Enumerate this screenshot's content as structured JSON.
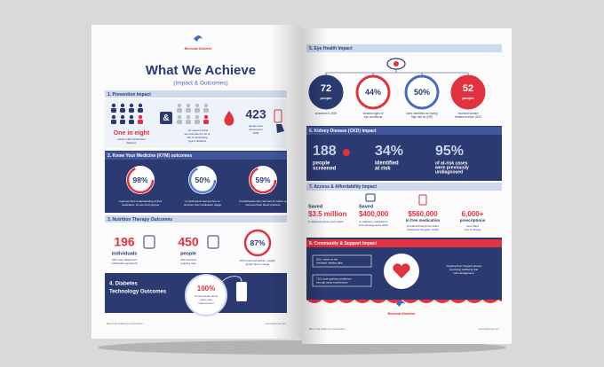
{
  "left_page": {
    "logo": "Bermuda Diabetes",
    "title": "What We Achieve",
    "subtitle": "(Impact & Outcomes)",
    "prevention": {
      "heading": "1. Prevention Impact",
      "stat": "One in eight",
      "stat_caption": [
        "adults in Bermuda have",
        "diabetes"
      ],
      "ampersand": "&",
      "risk_caption": [
        "...an equal number",
        "are estimated to be at",
        "risk of developing",
        "type 2 diabetes"
      ],
      "screened": "423",
      "screened_caption": [
        "people were",
        "screened in",
        "2025"
      ]
    },
    "kym": {
      "heading": "2. Know Your Medicine (KYM) outcomes",
      "items": [
        {
          "value": "98%",
          "caption": [
            "improved their understanding of their",
            "medication, its use and purpose"
          ]
        },
        {
          "value": "50%",
          "caption": [
            "of participants learned how to",
            "optimize their medication usage"
          ]
        },
        {
          "value": "59%",
          "caption": [
            "of participants who returned for follow up",
            "improved their blood pressure"
          ]
        }
      ]
    },
    "nutrition": {
      "heading": "3. Nutrition Therapy Outcomes",
      "items": [
        {
          "value": "196",
          "unit": "individuals",
          "caption": [
            "(96 newly diagnosed",
            "individuals supported)"
          ]
        },
        {
          "value": "450",
          "unit": "people",
          "caption": [
            "450 received",
            "ongoing care"
          ]
        },
        {
          "value": "87%",
          "caption": [
            "87% improved HbA1c, weight,",
            "and/or time in range"
          ]
        }
      ]
    },
    "technology": {
      "heading": [
        "4. Diabetes",
        "Technology Outcomes"
      ],
      "value": "100%",
      "caption": [
        "of new insulin pump",
        "users saw",
        "improvement"
      ]
    },
    "footer_left": "Bermuda Diabetes Association",
    "footer_right": "www.diabetes.bm"
  },
  "right_page": {
    "eye": {
      "heading": "5. Eye Health Impact",
      "items": [
        {
          "value": "72",
          "unit": "people",
          "caption": [
            "screened in 2025"
          ]
        },
        {
          "value": "44%",
          "caption": [
            "showed signs of",
            "eye conditions"
          ]
        },
        {
          "value": "50%",
          "caption": [
            "were identified as having",
            "high risk for (DR)"
          ]
        },
        {
          "value": "52",
          "unit": "people",
          "caption": [
            "received funded",
            "treatment since 2023"
          ]
        }
      ]
    },
    "kidney": {
      "heading": "6. Kidney Disease (CKD) Impact",
      "items": [
        {
          "value": "188",
          "caption": [
            "people",
            "screened"
          ]
        },
        {
          "value": "34%",
          "caption": [
            "identified",
            "at risk"
          ]
        },
        {
          "value": "95%",
          "caption": [
            "of at-risk cases",
            "were previously",
            "undiagnosed"
          ]
        }
      ]
    },
    "access": {
      "heading": "7. Access & Affordability Impact",
      "items": [
        {
          "lead": "Saved",
          "value": "$3.5 million",
          "caption": [
            "in dispensing fees since 2023"
          ]
        },
        {
          "lead": "Saved",
          "value": "$400,000",
          "caption": [
            "on diabetes medications",
            "& technology since 2023"
          ]
        },
        {
          "value": "$560,000",
          "unit": "in free medication",
          "caption": [
            "provided through the Client",
            "Assistance Program (CAP)"
          ]
        },
        {
          "value": "6,000+",
          "unit": "prescriptions",
          "caption": [
            "were filled",
            "free of charge"
          ]
        }
      ]
    },
    "community": {
      "heading": "8. Community & Support Impact",
      "boxes": [
        [
          "500+ views on the",
          "feedback reading data"
        ],
        [
          "T1D youth gaining confidence",
          "through camp experiences"
        ]
      ],
      "side": [
        "Ongoing Peer Support groups",
        "improving wellbeing and",
        "self-management"
      ]
    },
    "logo": "Bermuda Diabetes",
    "footer_left": "Bermuda Diabetes Association",
    "footer_right": "www.diabetes.bm"
  }
}
